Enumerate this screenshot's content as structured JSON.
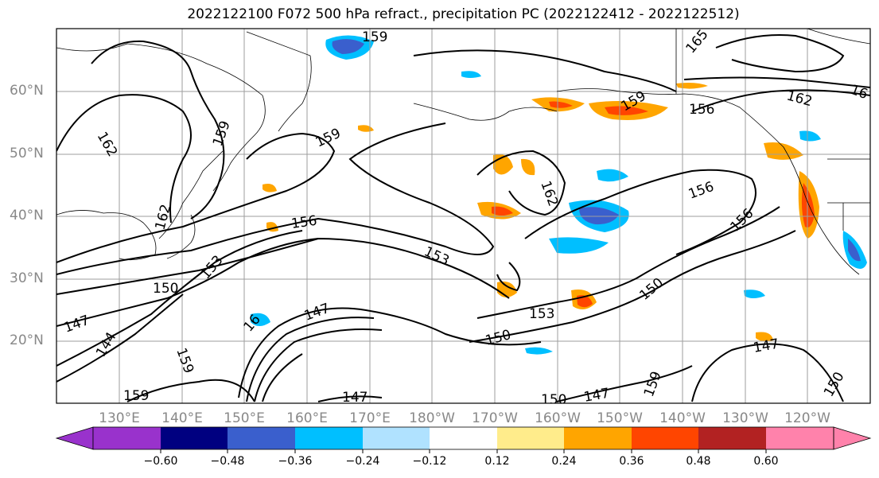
{
  "title": "2022122100 F072 500 hPa refract., precipitation PC (2022122412 - 2022122512)",
  "lat_labels": [
    "60°N",
    "50°N",
    "40°N",
    "30°N",
    "20°N"
  ],
  "lon_labels": [
    "130°E",
    "140°E",
    "150°E",
    "160°E",
    "170°E",
    "180°W",
    "170°W",
    "160°W",
    "150°W",
    "140°W",
    "130°W",
    "120°W"
  ],
  "contour_labels": [
    "159",
    "162",
    "159",
    "159",
    "162",
    "156",
    "153",
    "150",
    "153",
    "147",
    "144",
    "159",
    "16",
    "147",
    "159",
    "147",
    "150",
    "153",
    "150",
    "162",
    "156",
    "156",
    "150",
    "159",
    "159",
    "156",
    "165",
    "162",
    "16",
    "147",
    "150",
    "147",
    "150",
    "153"
  ],
  "colorbar": {
    "ticks": [
      "−0.60",
      "−0.48",
      "−0.36",
      "−0.24",
      "−0.12",
      "0.12",
      "0.24",
      "0.36",
      "0.48",
      "0.60"
    ],
    "colors": [
      "#9932CC",
      "#000080",
      "#3A5FCD",
      "#00BFFF",
      "#B0E2FF",
      "#FFFFFF",
      "#FFEC8B",
      "#FFA500",
      "#FF4500",
      "#B22222",
      "#FF82AB"
    ]
  }
}
